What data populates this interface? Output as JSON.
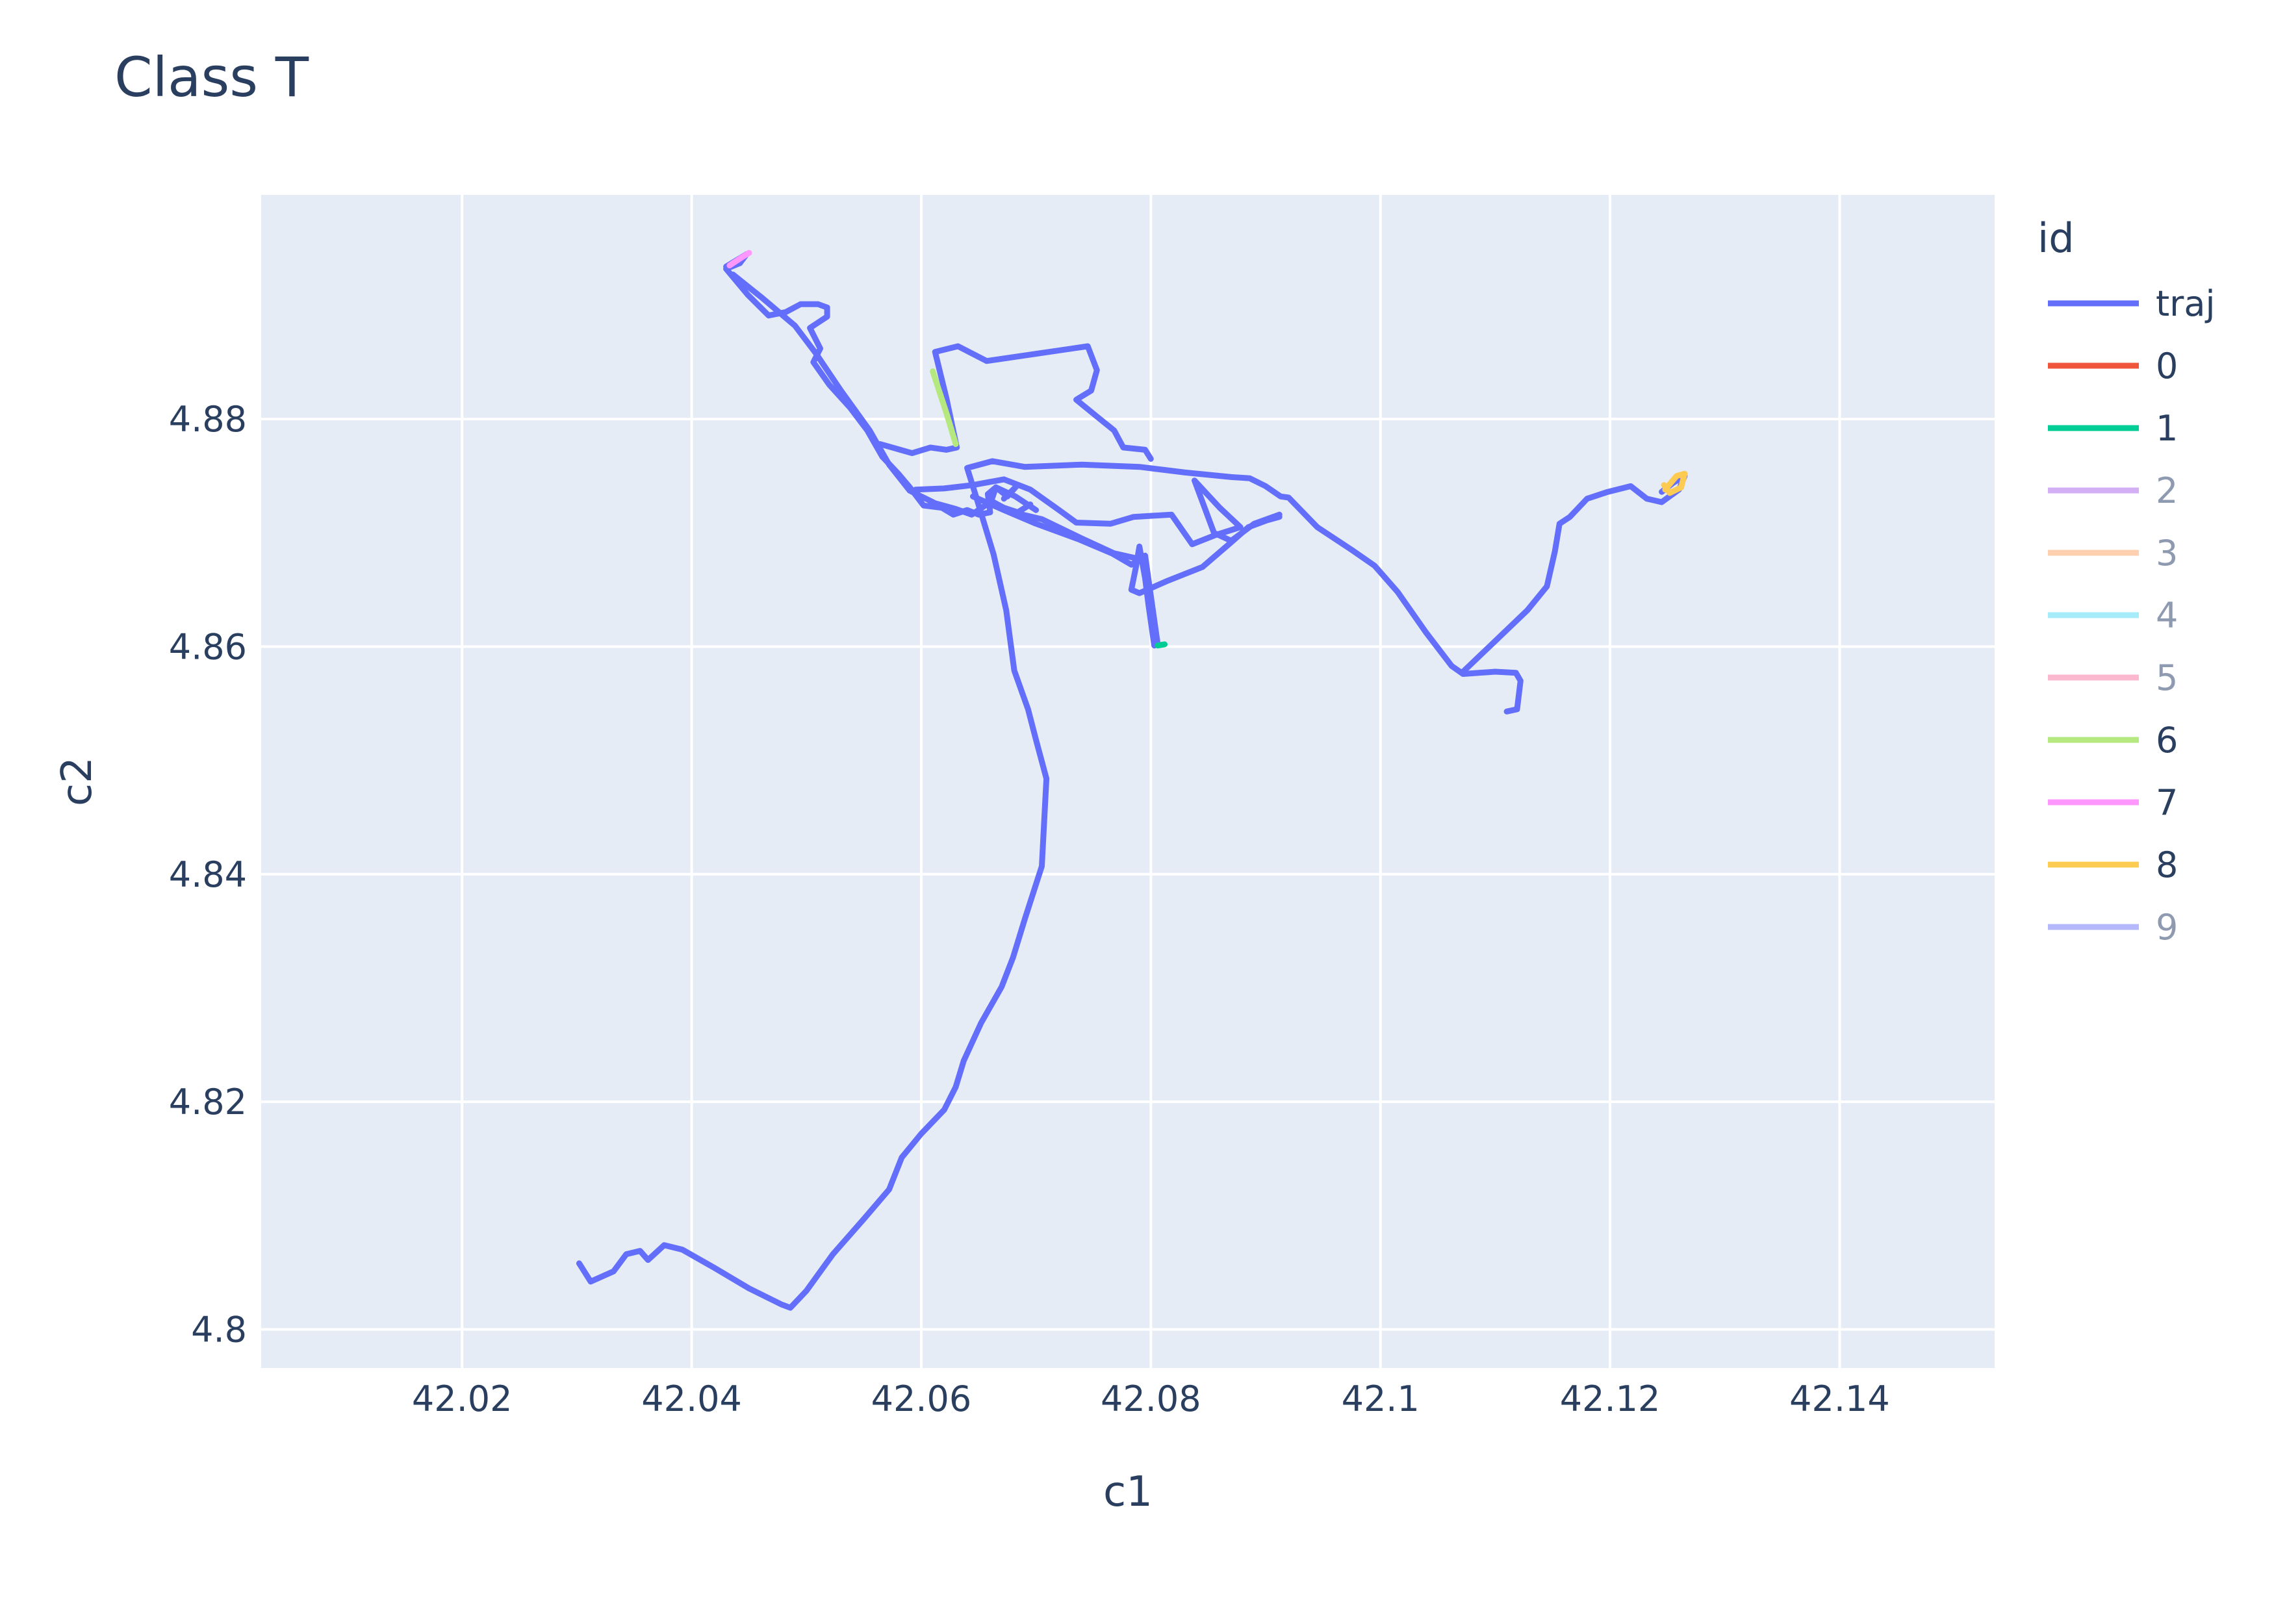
{
  "chart_data": {
    "type": "line",
    "title": "Class T",
    "xlabel": "c1",
    "ylabel": "c2",
    "xlim": [
      42.0025,
      42.1535
    ],
    "ylim": [
      4.7966,
      4.8997
    ],
    "x_ticks": [
      42.02,
      42.04,
      42.06,
      42.08,
      42.1,
      42.12,
      42.14
    ],
    "x_tick_labels": [
      "42.02",
      "42.04",
      "42.06",
      "42.08",
      "42.1",
      "42.12",
      "42.14"
    ],
    "y_ticks": [
      4.8,
      4.82,
      4.84,
      4.86,
      4.88
    ],
    "y_tick_labels": [
      "4.8",
      "4.82",
      "4.84",
      "4.86",
      "4.88"
    ],
    "grid": true,
    "legend_title": "id",
    "legend_position": "right",
    "background_color": "#e5ecf6",
    "grid_color": "#ffffff",
    "series": [
      {
        "name": "traj",
        "color": "#636efa",
        "legend_dim": false,
        "points": [
          [
            42.0302,
            4.8058
          ],
          [
            42.0312,
            4.8042
          ],
          [
            42.0332,
            4.8051
          ],
          [
            42.0343,
            4.8066
          ],
          [
            42.0355,
            4.8069
          ],
          [
            42.0362,
            4.8061
          ],
          [
            42.0376,
            4.8074
          ],
          [
            42.0392,
            4.807
          ],
          [
            42.042,
            4.8054
          ],
          [
            42.045,
            4.8036
          ],
          [
            42.0478,
            4.8022
          ],
          [
            42.0486,
            4.8019
          ],
          [
            42.05,
            4.8034
          ],
          [
            42.0523,
            4.8066
          ],
          [
            42.055,
            4.8097
          ],
          [
            42.0572,
            4.8123
          ],
          [
            42.0583,
            4.8151
          ],
          [
            42.06,
            4.8172
          ],
          [
            42.062,
            4.8193
          ],
          [
            42.063,
            4.8213
          ],
          [
            42.0637,
            4.8236
          ],
          [
            42.0652,
            4.8269
          ],
          [
            42.067,
            4.8301
          ],
          [
            42.068,
            4.8327
          ],
          [
            42.069,
            4.836
          ],
          [
            42.0705,
            4.8407
          ],
          [
            42.0709,
            4.8484
          ],
          [
            42.07,
            4.8518
          ],
          [
            42.0693,
            4.8545
          ],
          [
            42.0681,
            4.8579
          ],
          [
            42.0674,
            4.8632
          ],
          [
            42.0663,
            4.8681
          ],
          [
            42.0648,
            4.8731
          ],
          [
            42.064,
            4.8757
          ],
          [
            42.0662,
            4.8763
          ],
          [
            42.069,
            4.8758
          ],
          [
            42.074,
            4.876
          ],
          [
            42.079,
            4.8758
          ],
          [
            42.083,
            4.8753
          ],
          [
            42.087,
            4.8749
          ],
          [
            42.0886,
            4.8748
          ],
          [
            42.09,
            4.8741
          ],
          [
            42.0913,
            4.8732
          ],
          [
            42.092,
            4.8731
          ],
          [
            42.0945,
            4.8705
          ],
          [
            42.0975,
            4.8685
          ],
          [
            42.0995,
            4.8671
          ],
          [
            42.1015,
            4.8648
          ],
          [
            42.104,
            4.8612
          ],
          [
            42.1062,
            4.8583
          ],
          [
            42.1072,
            4.8576
          ],
          [
            42.11,
            4.8578
          ],
          [
            42.1118,
            4.8577
          ],
          [
            42.1122,
            4.857
          ],
          [
            42.1119,
            4.8545
          ],
          [
            42.111,
            4.8543
          ]
        ]
      },
      {
        "name": "traj",
        "color": "#636efa",
        "legend_dim": false,
        "points": [
          [
            42.1072,
            4.8578
          ],
          [
            42.11,
            4.8605
          ],
          [
            42.1128,
            4.8632
          ],
          [
            42.1145,
            4.8653
          ],
          [
            42.1152,
            4.8684
          ],
          [
            42.1156,
            4.8708
          ],
          [
            42.1165,
            4.8714
          ],
          [
            42.118,
            4.873
          ],
          [
            42.1198,
            4.8736
          ],
          [
            42.1218,
            4.8741
          ],
          [
            42.1232,
            4.873
          ],
          [
            42.1245,
            4.8727
          ],
          [
            42.126,
            4.8738
          ],
          [
            42.1265,
            4.875
          ],
          [
            42.1255,
            4.8744
          ],
          [
            42.1245,
            4.8736
          ]
        ]
      },
      {
        "name": "traj",
        "color": "#636efa",
        "legend_dim": false,
        "points": [
          [
            42.0645,
            4.8732
          ],
          [
            42.0672,
            4.872
          ],
          [
            42.07,
            4.8708
          ],
          [
            42.0738,
            4.8694
          ],
          [
            42.0766,
            4.8682
          ],
          [
            42.0783,
            4.8672
          ],
          [
            42.0795,
            4.868
          ],
          [
            42.0806,
            4.8602
          ],
          [
            42.0803,
            4.8601
          ],
          [
            42.0798,
            4.8636
          ],
          [
            42.0795,
            4.866
          ],
          [
            42.079,
            4.8688
          ],
          [
            42.0787,
            4.867
          ],
          [
            42.0783,
            4.865
          ],
          [
            42.079,
            4.8647
          ],
          [
            42.0815,
            4.8658
          ],
          [
            42.0845,
            4.867
          ],
          [
            42.0868,
            4.869
          ],
          [
            42.0885,
            4.8705
          ],
          [
            42.0901,
            4.8711
          ],
          [
            42.0912,
            4.8714
          ]
        ]
      },
      {
        "name": "traj",
        "color": "#636efa",
        "legend_dim": false,
        "points": [
          [
            42.0564,
            4.8778
          ],
          [
            42.0592,
            4.877
          ],
          [
            42.0608,
            4.8775
          ],
          [
            42.0622,
            4.8773
          ],
          [
            42.0631,
            4.8775
          ],
          [
            42.0622,
            4.8818
          ],
          [
            42.0612,
            4.8859
          ],
          [
            42.0632,
            4.8864
          ],
          [
            42.0657,
            4.8851
          ],
          [
            42.0745,
            4.8864
          ],
          [
            42.0753,
            4.8843
          ],
          [
            42.0748,
            4.8825
          ],
          [
            42.0735,
            4.8817
          ],
          [
            42.0752,
            4.8803
          ],
          [
            42.0768,
            4.879
          ],
          [
            42.0776,
            4.8775
          ],
          [
            42.0795,
            4.8773
          ],
          [
            42.08,
            4.8765
          ]
        ]
      },
      {
        "name": "traj",
        "color": "#636efa",
        "legend_dim": false,
        "points": [
          [
            42.0595,
            4.8738
          ],
          [
            42.062,
            4.8739
          ],
          [
            42.0645,
            4.8742
          ],
          [
            42.0672,
            4.8747
          ],
          [
            42.0695,
            4.8738
          ],
          [
            42.072,
            4.872
          ],
          [
            42.0735,
            4.8709
          ],
          [
            42.0765,
            4.8708
          ],
          [
            42.0785,
            4.8714
          ],
          [
            42.0818,
            4.8716
          ],
          [
            42.0836,
            4.869
          ],
          [
            42.0856,
            4.8698
          ],
          [
            42.0878,
            4.8705
          ],
          [
            42.086,
            4.8722
          ],
          [
            42.0838,
            4.8746
          ],
          [
            42.0855,
            4.87
          ],
          [
            42.087,
            4.8693
          ],
          [
            42.089,
            4.8708
          ],
          [
            42.0912,
            4.8716
          ]
        ]
      },
      {
        "name": "traj",
        "color": "#636efa",
        "legend_dim": false,
        "points": [
          [
            42.043,
            4.8934
          ],
          [
            42.0448,
            4.8945
          ],
          [
            42.0442,
            4.8937
          ],
          [
            42.043,
            4.8932
          ],
          [
            42.0449,
            4.8909
          ],
          [
            42.0467,
            4.8891
          ],
          [
            42.0482,
            4.8894
          ],
          [
            42.0495,
            4.8901
          ],
          [
            42.051,
            4.8901
          ],
          [
            42.0518,
            4.8898
          ],
          [
            42.0518,
            4.889
          ],
          [
            42.0503,
            4.888
          ],
          [
            42.0512,
            4.8862
          ],
          [
            42.0506,
            4.885
          ],
          [
            42.052,
            4.883
          ],
          [
            42.0538,
            4.881
          ],
          [
            42.0553,
            4.879
          ],
          [
            42.0566,
            4.8767
          ],
          [
            42.058,
            4.8752
          ],
          [
            42.059,
            4.874
          ],
          [
            42.0602,
            4.8724
          ],
          [
            42.0618,
            4.8722
          ],
          [
            42.0628,
            4.8716
          ],
          [
            42.064,
            4.872
          ],
          [
            42.065,
            4.8716
          ],
          [
            42.066,
            4.8718
          ],
          [
            42.0658,
            4.8734
          ],
          [
            42.0665,
            4.874
          ],
          [
            42.0682,
            4.8732
          ],
          [
            42.07,
            4.872
          ]
        ]
      },
      {
        "name": "traj",
        "color": "#636efa",
        "legend_dim": false,
        "points": [
          [
            42.0436,
            4.8927
          ],
          [
            42.0462,
            4.8906
          ],
          [
            42.049,
            4.8882
          ],
          [
            42.0508,
            4.8858
          ],
          [
            42.053,
            4.8825
          ],
          [
            42.0555,
            4.879
          ],
          [
            42.0572,
            4.876
          ],
          [
            42.059,
            4.8737
          ],
          [
            42.0612,
            4.8726
          ],
          [
            42.063,
            4.8721
          ],
          [
            42.0644,
            4.8716
          ],
          [
            42.066,
            4.8727
          ],
          [
            42.068,
            4.8718
          ],
          [
            42.0705,
            4.8712
          ],
          [
            42.074,
            4.8695
          ],
          [
            42.0768,
            4.8682
          ],
          [
            42.079,
            4.8677
          ]
        ]
      },
      {
        "name": "traj",
        "color": "#636efa",
        "legend_dim": false,
        "points": [
          [
            42.0672,
            4.873
          ],
          [
            42.0683,
            4.8741
          ],
          [
            42.0675,
            4.8732
          ],
          [
            42.0665,
            4.874
          ],
          [
            42.0661,
            4.8728
          ],
          [
            42.0672,
            4.8722
          ],
          [
            42.0684,
            4.8718
          ],
          [
            42.0695,
            4.8725
          ]
        ]
      },
      {
        "name": "6",
        "color": "#b6e880",
        "legend_dim": false,
        "points": [
          [
            42.061,
            4.8842
          ],
          [
            42.0622,
            4.8805
          ],
          [
            42.063,
            4.8778
          ]
        ]
      },
      {
        "name": "7",
        "color": "#ff97ff",
        "legend_dim": false,
        "points": [
          [
            42.0433,
            4.8935
          ],
          [
            42.0442,
            4.8941
          ],
          [
            42.045,
            4.8946
          ]
        ]
      },
      {
        "name": "8",
        "color": "#fecb52",
        "legend_dim": false,
        "points": [
          [
            42.1248,
            4.8738
          ],
          [
            42.1258,
            4.875
          ],
          [
            42.1265,
            4.8752
          ],
          [
            42.1262,
            4.874
          ],
          [
            42.1252,
            4.8735
          ],
          [
            42.1247,
            4.8742
          ]
        ]
      },
      {
        "name": "1",
        "color": "#00cc96",
        "legend_dim": false,
        "points": [
          [
            42.0806,
            4.8601
          ],
          [
            42.0812,
            4.8602
          ]
        ]
      },
      {
        "name": "0",
        "color": "#ef553b",
        "legend_dim": false,
        "points": []
      },
      {
        "name": "2",
        "color": "#d3b0f5",
        "legend_dim": true,
        "points": []
      },
      {
        "name": "3",
        "color": "#ffd0b0",
        "legend_dim": true,
        "points": []
      },
      {
        "name": "4",
        "color": "#a6ebfa",
        "legend_dim": true,
        "points": []
      },
      {
        "name": "5",
        "color": "#fcb8cf",
        "legend_dim": true,
        "points": []
      },
      {
        "name": "9",
        "color": "#b5b8fc",
        "legend_dim": true,
        "points": []
      }
    ],
    "legend": [
      {
        "label": "traj",
        "color": "#636efa",
        "dim": false
      },
      {
        "label": "0",
        "color": "#ef553b",
        "dim": false
      },
      {
        "label": "1",
        "color": "#00cc96",
        "dim": false
      },
      {
        "label": "2",
        "color": "#d3b0f5",
        "dim": true
      },
      {
        "label": "3",
        "color": "#ffd0b0",
        "dim": true
      },
      {
        "label": "4",
        "color": "#a6ebfa",
        "dim": true
      },
      {
        "label": "5",
        "color": "#fcb8cf",
        "dim": true
      },
      {
        "label": "6",
        "color": "#b6e880",
        "dim": false
      },
      {
        "label": "7",
        "color": "#ff97ff",
        "dim": false
      },
      {
        "label": "8",
        "color": "#fecb52",
        "dim": false
      },
      {
        "label": "9",
        "color": "#b5b8fc",
        "dim": true
      }
    ]
  }
}
